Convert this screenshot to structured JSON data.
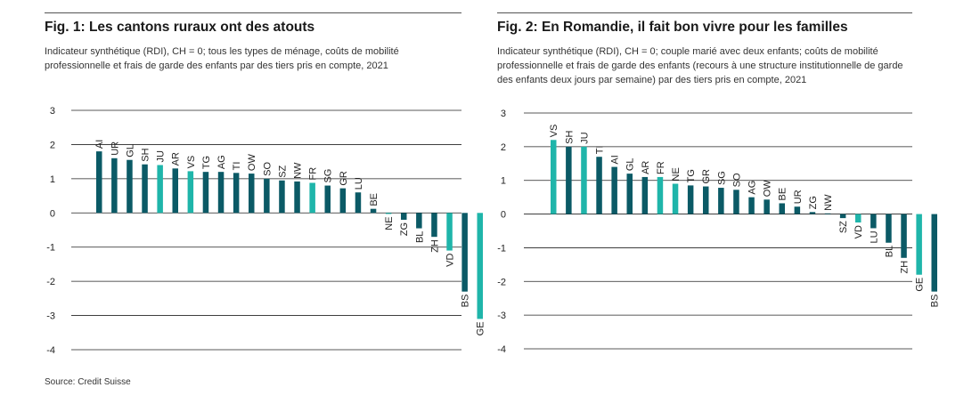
{
  "source": "Source: Credit Suisse",
  "colors": {
    "dark": "#0b5a66",
    "light": "#1fb5aa",
    "grid": "#222222"
  },
  "chart_data": [
    {
      "type": "bar",
      "title": "Fig. 1: Les cantons ruraux ont des atouts",
      "subtitle": "Indicateur synthétique (RDI), CH = 0; tous les types de ménage, coûts de mobilité professionnelle et frais de garde des enfants par des tiers pris en compte, 2021",
      "xlabel": "",
      "ylabel": "",
      "ylim": [
        -4,
        3
      ],
      "yticks": [
        "3",
        "2",
        "1",
        "0",
        "-1",
        "-2",
        "-3",
        "-4"
      ],
      "grid": true,
      "categories": [
        "AI",
        "UR",
        "GL",
        "SH",
        "JU",
        "AR",
        "VS",
        "TG",
        "AG",
        "TI",
        "OW",
        "SO",
        "SZ",
        "NW",
        "FR",
        "SG",
        "GR",
        "LU",
        "BE",
        "NE",
        "ZG",
        "BL",
        "ZH",
        "VD",
        "BS",
        "GE"
      ],
      "values": [
        1.8,
        1.6,
        1.55,
        1.42,
        1.4,
        1.3,
        1.22,
        1.2,
        1.2,
        1.17,
        1.15,
        1.0,
        0.95,
        0.92,
        0.88,
        0.8,
        0.72,
        0.6,
        0.12,
        -0.03,
        -0.2,
        -0.45,
        -0.7,
        -1.1,
        -2.3,
        -3.1
      ],
      "highlight": [
        "JU",
        "VS",
        "FR",
        "NE",
        "VD",
        "GE"
      ]
    },
    {
      "type": "bar",
      "title": "Fig. 2: En Romandie, il fait bon vivre pour les familles",
      "subtitle": "Indicateur synthétique (RDI), CH = 0; couple marié avec deux enfants; coûts de mobilité professionnelle et frais de garde des enfants (recours à une structure institutionnelle de garde des enfants deux jours par semaine) par des tiers pris en compte, 2021",
      "xlabel": "",
      "ylabel": "",
      "ylim": [
        -4,
        3
      ],
      "yticks": [
        "3",
        "2",
        "1",
        "0",
        "-1",
        "-2",
        "-3",
        "-4"
      ],
      "grid": true,
      "categories": [
        "VS",
        "SH",
        "JU",
        "TI",
        "AI",
        "GL",
        "AR",
        "FR",
        "NE",
        "TG",
        "GR",
        "SG",
        "SO",
        "AG",
        "OW",
        "BE",
        "UR",
        "ZG",
        "NW",
        "SZ",
        "VD",
        "LU",
        "BL",
        "ZH",
        "GE",
        "BS"
      ],
      "values": [
        2.2,
        2.0,
        2.0,
        1.7,
        1.4,
        1.2,
        1.1,
        1.1,
        0.9,
        0.85,
        0.82,
        0.78,
        0.72,
        0.5,
        0.43,
        0.32,
        0.22,
        0.06,
        0.02,
        -0.12,
        -0.25,
        -0.42,
        -0.85,
        -1.3,
        -1.8,
        -2.3
      ],
      "highlight": [
        "VS",
        "JU",
        "FR",
        "NE",
        "VD",
        "GE"
      ]
    }
  ]
}
